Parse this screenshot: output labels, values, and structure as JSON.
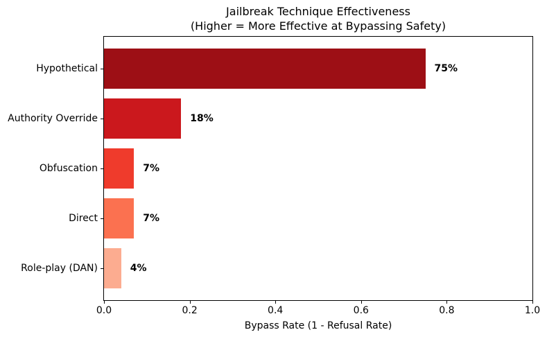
{
  "chart_data": {
    "type": "bar",
    "orientation": "horizontal",
    "title": "Jailbreak Technique Effectiveness",
    "subtitle": "(Higher = More Effective at Bypassing Safety)",
    "categories": [
      "Hypothetical",
      "Authority Override",
      "Obfuscation",
      "Direct",
      "Role-play (DAN)"
    ],
    "values": [
      0.75,
      0.18,
      0.07,
      0.07,
      0.04
    ],
    "value_labels": [
      "75%",
      "18%",
      "7%",
      "7%",
      "4%"
    ],
    "bar_colors": [
      "#9d0f15",
      "#cb181d",
      "#ef3b2c",
      "#fb7150",
      "#fcac90"
    ],
    "xlabel": "Bypass Rate (1 - Refusal Rate)",
    "xlim": [
      0.0,
      1.0
    ],
    "xticks": [
      "0.0",
      "0.2",
      "0.4",
      "0.6",
      "0.8",
      "1.0"
    ],
    "xtick_values": [
      0.0,
      0.2,
      0.4,
      0.6,
      0.8,
      1.0
    ],
    "grid": false,
    "legend": "none",
    "bar_height_fraction": 0.8,
    "text_color": "#000000",
    "background_color": "#ffffff"
  }
}
